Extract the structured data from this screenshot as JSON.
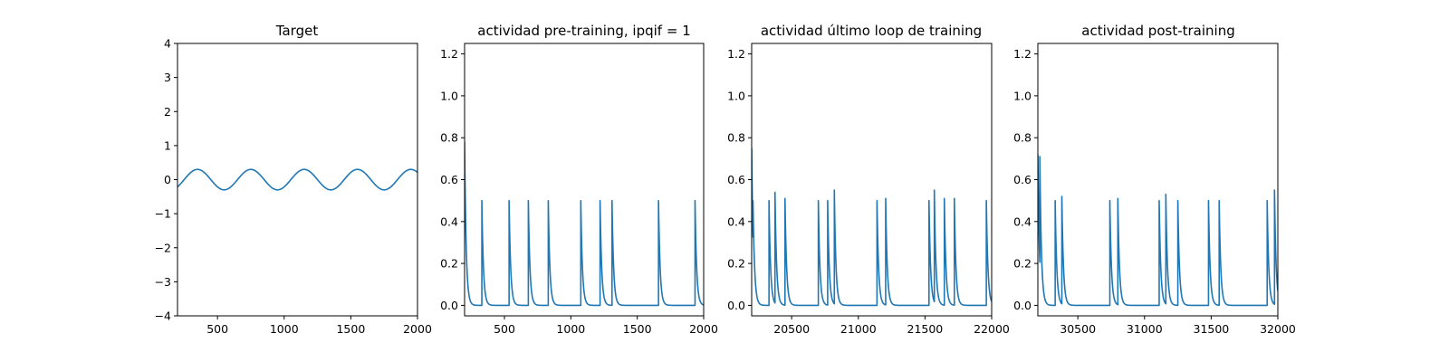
{
  "figure": {
    "background": "#ffffff",
    "line_color": "#1f77b4"
  },
  "chart_data": [
    {
      "type": "line",
      "title": "Target",
      "xlabel": "",
      "ylabel": "",
      "xlim": [
        200,
        2000
      ],
      "ylim": [
        -4,
        4
      ],
      "xticks": [
        500,
        1000,
        1500,
        2000
      ],
      "yticks": [
        -4,
        -3,
        -2,
        -1,
        0,
        1,
        2,
        3,
        4
      ],
      "ytick_labels": [
        "−4",
        "−3",
        "−2",
        "−1",
        "0",
        "1",
        "2",
        "3",
        "4"
      ],
      "series": [
        {
          "kind": "sine",
          "amplitude": 0.3,
          "period": 400,
          "peaks_x": [
            350,
            750,
            1150,
            1550,
            1950
          ],
          "x_start": 200,
          "x_end": 2000
        }
      ]
    },
    {
      "type": "line",
      "title": "actividad pre-training, ipqif = 1",
      "xlabel": "",
      "ylabel": "",
      "xlim": [
        200,
        2000
      ],
      "ylim": [
        -0.05,
        1.25
      ],
      "xticks": [
        500,
        1000,
        1500,
        2000
      ],
      "yticks": [
        0.0,
        0.2,
        0.4,
        0.6,
        0.8,
        1.0,
        1.2
      ],
      "ytick_labels": [
        "0.0",
        "0.2",
        "0.4",
        "0.6",
        "0.8",
        "1.0",
        "1.2"
      ],
      "series": [
        {
          "kind": "spike_train",
          "initial_value": 0.78,
          "decay_tau": 12,
          "spikes": [
            {
              "x": 330,
              "h": 0.5
            },
            {
              "x": 535,
              "h": 0.5
            },
            {
              "x": 680,
              "h": 0.5
            },
            {
              "x": 830,
              "h": 0.5
            },
            {
              "x": 1075,
              "h": 0.5
            },
            {
              "x": 1220,
              "h": 0.5
            },
            {
              "x": 1310,
              "h": 0.5
            },
            {
              "x": 1660,
              "h": 0.5
            },
            {
              "x": 1935,
              "h": 0.5
            }
          ]
        }
      ]
    },
    {
      "type": "line",
      "title": "actividad último loop de training",
      "xlabel": "",
      "ylabel": "",
      "xlim": [
        20200,
        22000
      ],
      "ylim": [
        -0.05,
        1.25
      ],
      "xticks": [
        20500,
        21000,
        21500,
        22000
      ],
      "yticks": [
        0.0,
        0.2,
        0.4,
        0.6,
        0.8,
        1.0,
        1.2
      ],
      "ytick_labels": [
        "0.0",
        "0.2",
        "0.4",
        "0.6",
        "0.8",
        "1.0",
        "1.2"
      ],
      "series": [
        {
          "kind": "spike_train",
          "initial_value": 0.75,
          "decay_tau": 12,
          "spikes": [
            {
              "x": 20210,
              "h": 0.5
            },
            {
              "x": 20330,
              "h": 0.5
            },
            {
              "x": 20375,
              "h": 0.54
            },
            {
              "x": 20450,
              "h": 0.51
            },
            {
              "x": 20700,
              "h": 0.5
            },
            {
              "x": 20770,
              "h": 0.5
            },
            {
              "x": 20820,
              "h": 0.55
            },
            {
              "x": 21140,
              "h": 0.5
            },
            {
              "x": 21205,
              "h": 0.51
            },
            {
              "x": 21530,
              "h": 0.5
            },
            {
              "x": 21570,
              "h": 0.55
            },
            {
              "x": 21645,
              "h": 0.51
            },
            {
              "x": 21720,
              "h": 0.51
            },
            {
              "x": 21960,
              "h": 0.5
            }
          ]
        }
      ]
    },
    {
      "type": "line",
      "title": "actividad post-training",
      "xlabel": "",
      "ylabel": "",
      "xlim": [
        30200,
        32000
      ],
      "ylim": [
        -0.05,
        1.25
      ],
      "xticks": [
        30500,
        31000,
        31500,
        32000
      ],
      "yticks": [
        0.0,
        0.2,
        0.4,
        0.6,
        0.8,
        1.0,
        1.2
      ],
      "ytick_labels": [
        "0.0",
        "0.2",
        "0.4",
        "0.6",
        "0.8",
        "1.0",
        "1.2"
      ],
      "series": [
        {
          "kind": "spike_train",
          "initial_value": 0.72,
          "decay_tau": 12,
          "spikes": [
            {
              "x": 30215,
              "h": 0.71
            },
            {
              "x": 30330,
              "h": 0.5
            },
            {
              "x": 30380,
              "h": 0.52
            },
            {
              "x": 30740,
              "h": 0.5
            },
            {
              "x": 30800,
              "h": 0.51
            },
            {
              "x": 31110,
              "h": 0.5
            },
            {
              "x": 31160,
              "h": 0.53
            },
            {
              "x": 31250,
              "h": 0.5
            },
            {
              "x": 31480,
              "h": 0.5
            },
            {
              "x": 31560,
              "h": 0.5
            },
            {
              "x": 31920,
              "h": 0.5
            },
            {
              "x": 31975,
              "h": 0.55
            }
          ]
        }
      ]
    }
  ]
}
